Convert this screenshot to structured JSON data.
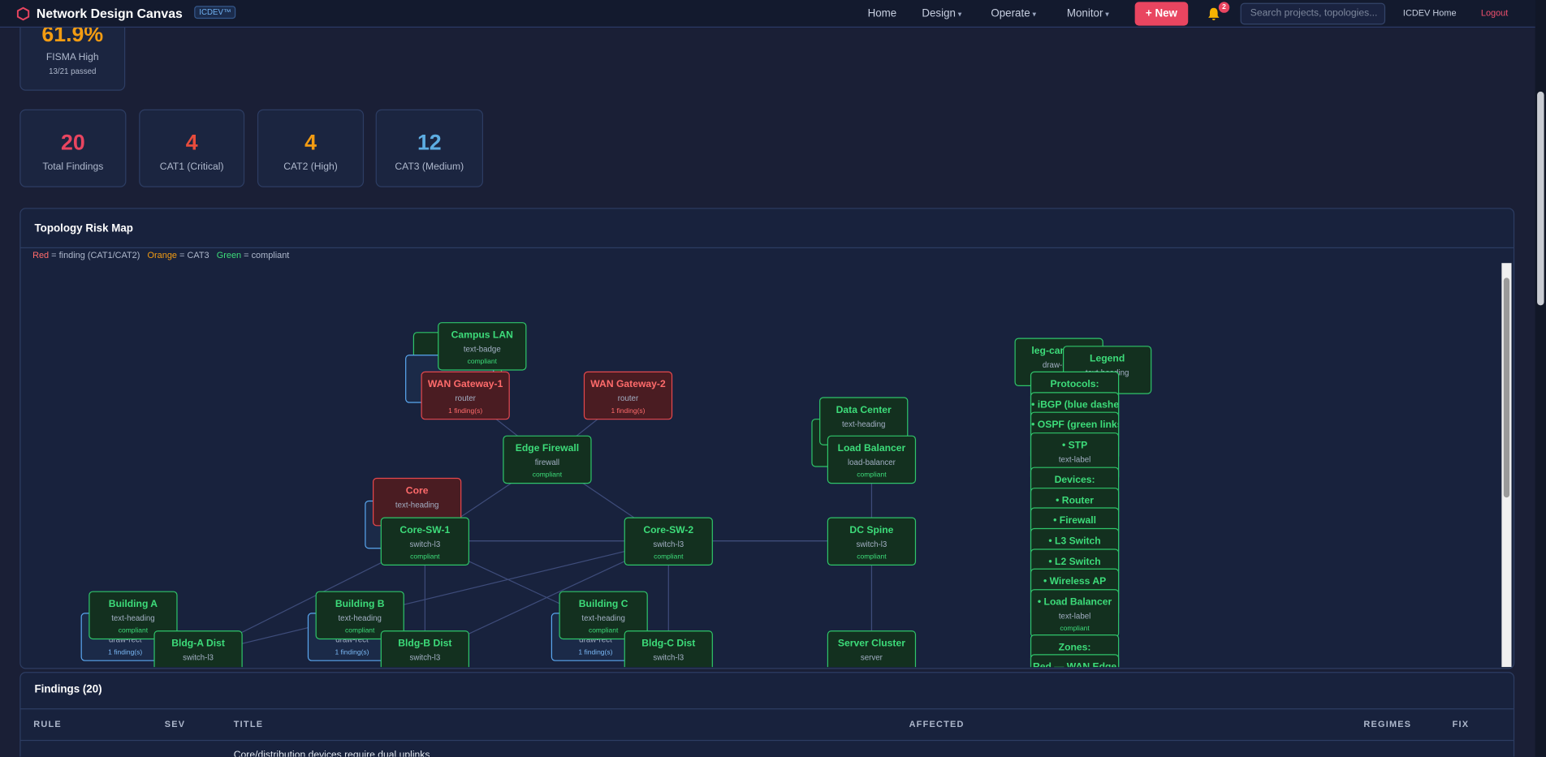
{
  "nav": {
    "brand": "Network Design Canvas",
    "badge": "ICDEV™",
    "links": [
      "Home",
      "Design",
      "Operate",
      "Monitor"
    ],
    "new_button": "+ New",
    "notifications": "2",
    "search_placeholder": "Search projects, topologies...",
    "home_link": "ICDEV Home",
    "logout": "Logout"
  },
  "compliance": {
    "score": "61.9%",
    "regime": "FISMA High",
    "passed": "13/21 passed"
  },
  "stats": [
    {
      "value": "20",
      "label": "Total Findings",
      "color": "#e94560"
    },
    {
      "value": "4",
      "label": "CAT1 (Critical)",
      "color": "#e74c3c"
    },
    {
      "value": "4",
      "label": "CAT2 (High)",
      "color": "#f39c12"
    },
    {
      "value": "12",
      "label": "CAT3 (Medium)",
      "color": "#5dade2"
    }
  ],
  "topology": {
    "title": "Topology Risk Map",
    "legend": [
      {
        "key": "Red",
        "text": "= finding (CAT1/CAT2)"
      },
      {
        "key": "Orange",
        "text": "= CAT3"
      },
      {
        "key": "Green",
        "text": "= compliant"
      }
    ],
    "nodes": [
      {
        "label": "Campus LAN",
        "type": "text-badge",
        "status": "compliant"
      },
      {
        "label": "WAN Gateway-1",
        "type": "router",
        "status": "1 finding(s)"
      },
      {
        "label": "WAN Gateway-2",
        "type": "router",
        "status": "1 finding(s)"
      },
      {
        "label": "Edge Firewall",
        "type": "firewall",
        "status": "compliant"
      },
      {
        "label": "Core",
        "type": "text-heading"
      },
      {
        "label": "Core-SW-1",
        "type": "switch-l3",
        "status": "compliant"
      },
      {
        "label": "Core-SW-2",
        "type": "switch-l3",
        "status": "compliant"
      },
      {
        "label": "Data Center",
        "type": "text-heading"
      },
      {
        "label": "Load Balancer",
        "type": "load-balancer",
        "status": "compliant"
      },
      {
        "label": "DC Spine",
        "type": "switch-l3",
        "status": "compliant"
      },
      {
        "type": "draw-rect",
        "status": "1 finding(s)"
      },
      {
        "label": "Building A",
        "type": "text-heading",
        "status": "compliant"
      },
      {
        "label": "Bldg-A Dist",
        "type": "switch-l3"
      },
      {
        "type": "draw-rect",
        "status": "1 finding(s)"
      },
      {
        "label": "Building B",
        "type": "text-heading",
        "status": "compliant"
      },
      {
        "label": "Bldg-B Dist",
        "type": "switch-l3"
      },
      {
        "type": "draw-rect",
        "status": "1 finding(s)"
      },
      {
        "label": "Building C",
        "type": "text-heading",
        "status": "compliant"
      },
      {
        "label": "Bldg-C Dist",
        "type": "switch-l3"
      },
      {
        "label": "Server Cluster",
        "type": "server"
      },
      {
        "label": "leg-campus",
        "type": "draw-rect"
      },
      {
        "label": "Legend",
        "type": "text-heading"
      },
      {
        "label": "Protocols:"
      },
      {
        "label": "• iBGP (blue dashed)"
      },
      {
        "label": "• OSPF (green links)"
      },
      {
        "label": "• STP",
        "type": "text-label"
      },
      {
        "label": "Devices:"
      },
      {
        "label": "• Router"
      },
      {
        "label": "• Firewall"
      },
      {
        "label": "• L3 Switch"
      },
      {
        "label": "• L2 Switch"
      },
      {
        "label": "• Wireless AP"
      },
      {
        "label": "• Load Balancer",
        "type": "text-label",
        "status": "compliant"
      },
      {
        "label": "Zones:"
      },
      {
        "label": "Red — WAN Edge"
      }
    ]
  },
  "findings": {
    "title": "Findings (20)",
    "columns": [
      "RULE",
      "SEV",
      "TITLE",
      "AFFECTED",
      "REGIMES",
      "FIX"
    ],
    "rows": [
      {
        "title": "Core/distribution devices require dual uplinks"
      }
    ]
  }
}
